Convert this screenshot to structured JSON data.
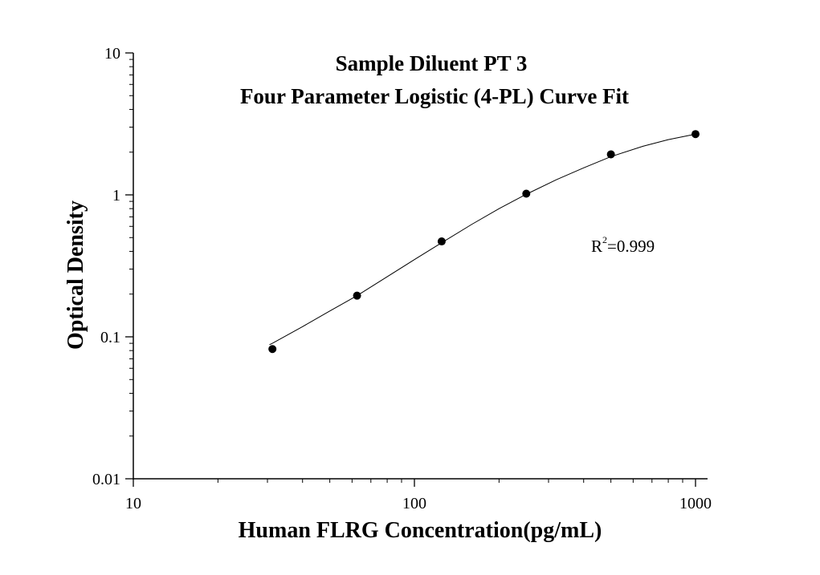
{
  "chart_data": {
    "type": "scatter",
    "title": "Sample Diluent PT 3",
    "subtitle": "Four Parameter Logistic (4-PL) Curve Fit",
    "xlabel": "Human FLRG Concentration(pg/mL)",
    "ylabel": "Optical Density",
    "xscale": "log",
    "yscale": "log",
    "xlim": [
      10,
      1000
    ],
    "ylim": [
      0.01,
      10
    ],
    "x_ticks": [
      "10",
      "100",
      "1000"
    ],
    "y_ticks": [
      "0.01",
      "0.1",
      "1",
      "10"
    ],
    "grid": false,
    "series": [
      {
        "x": [
          31.25,
          62.5,
          125,
          250,
          500,
          1000
        ],
        "y": [
          0.082,
          0.195,
          0.47,
          1.02,
          1.93,
          2.68
        ]
      }
    ],
    "fit": {
      "model": "4-PL",
      "x": [
        30.5,
        31.25,
        40,
        50,
        62.5,
        80,
        100,
        125,
        160,
        200,
        250,
        320,
        400,
        500,
        650,
        800,
        1000
      ],
      "y": [
        0.088,
        0.09,
        0.118,
        0.152,
        0.195,
        0.265,
        0.35,
        0.46,
        0.62,
        0.8,
        1.01,
        1.28,
        1.55,
        1.86,
        2.2,
        2.45,
        2.68
      ]
    },
    "annotation": {
      "base": "R",
      "sup": "2",
      "text": "=0.999"
    }
  }
}
